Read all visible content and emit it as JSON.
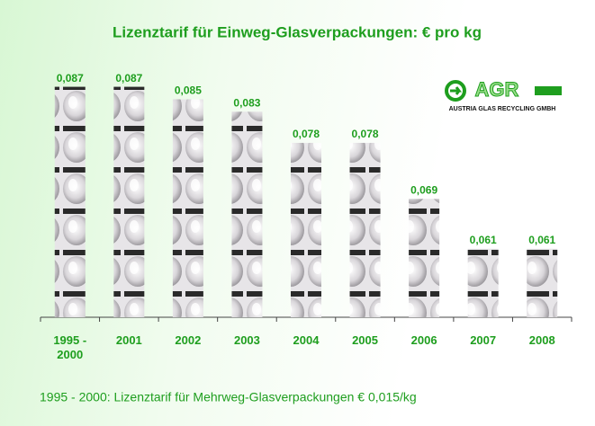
{
  "chart_data": {
    "type": "bar",
    "title": "Lizenztarif für Einweg-Glasverpackungen: € pro kg",
    "categories": [
      "1995 - 2000",
      "2001",
      "2002",
      "2003",
      "2004",
      "2005",
      "2006",
      "2007",
      "2008"
    ],
    "values": [
      0.087,
      0.087,
      0.085,
      0.083,
      0.078,
      0.078,
      0.069,
      0.061,
      0.061
    ],
    "value_labels": [
      "0,087",
      "0,087",
      "0,085",
      "0,083",
      "0,078",
      "0,078",
      "0,069",
      "0,061",
      "0,061"
    ],
    "ylim": [
      0.05,
      0.093
    ],
    "color": "#1e9e1e",
    "footnote": "1995 - 2000:  Lizenztarif für Mehrweg-Glasverpackungen € 0,015/kg",
    "logo": {
      "mark": "AGR",
      "text": "AUSTRIA GLAS RECYCLING GMBH"
    }
  }
}
